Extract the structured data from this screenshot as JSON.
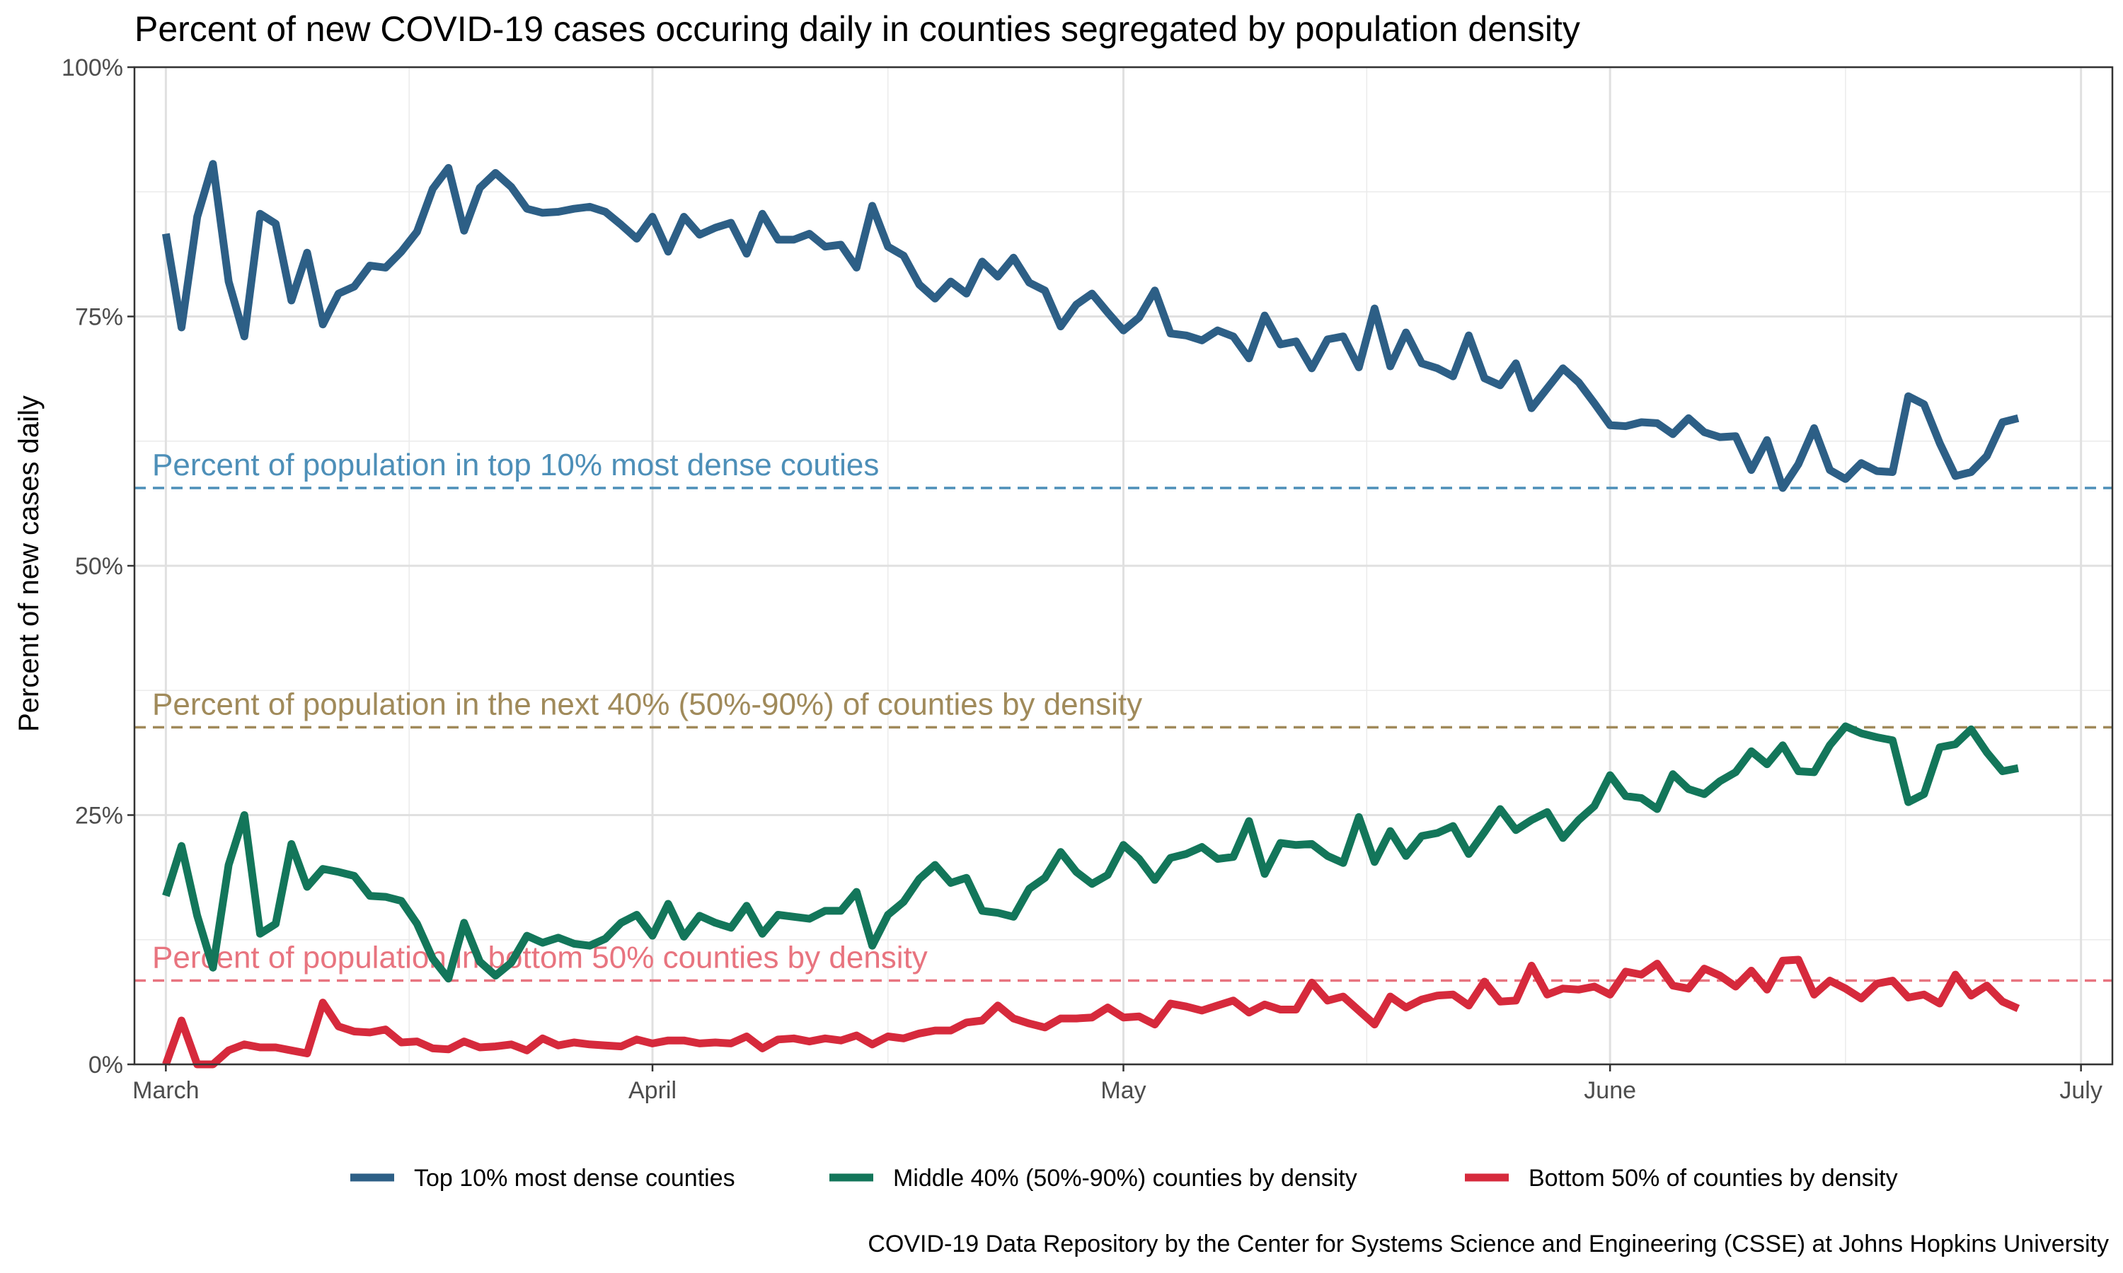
{
  "chart_data": {
    "type": "line",
    "title": "Percent of new COVID-19 cases occuring daily in counties segregated by population density",
    "xlabel": "",
    "ylabel": "Percent of new cases daily",
    "caption": "COVID-19 Data Repository by the Center for Systems Science and Engineering (CSSE) at Johns Hopkins University",
    "x_start": "2020-03-01",
    "xlim": [
      "2020-02-28",
      "2020-07-03"
    ],
    "ylim": [
      0,
      100
    ],
    "x_ticks": [
      {
        "label": "March",
        "date": "2020-03-01"
      },
      {
        "label": "April",
        "date": "2020-04-01"
      },
      {
        "label": "May",
        "date": "2020-05-01"
      },
      {
        "label": "June",
        "date": "2020-06-01"
      },
      {
        "label": "July",
        "date": "2020-07-01"
      }
    ],
    "y_ticks": [
      {
        "label": "0%",
        "value": 0
      },
      {
        "label": "25%",
        "value": 25
      },
      {
        "label": "50%",
        "value": 50
      },
      {
        "label": "75%",
        "value": 75
      },
      {
        "label": "100%",
        "value": 100
      }
    ],
    "grid": true,
    "legend_position": "bottom",
    "reference_lines": [
      {
        "label": "Percent of population in top 10% most dense couties",
        "value": 57.8,
        "color": "#4d8fb8"
      },
      {
        "label": "Percent of population in the next 40% (50%-90%) of counties by density",
        "value": 33.8,
        "color": "#a08a5a"
      },
      {
        "label": "Percent of population in bottom 50% counties by density",
        "value": 8.4,
        "color": "#e8747f"
      }
    ],
    "series": [
      {
        "name": "Top 10% most dense counties",
        "color": "#2d5f86",
        "values": [
          83.3,
          73.9,
          85.0,
          90.3,
          78.5,
          73.0,
          85.3,
          84.3,
          76.6,
          81.4,
          74.2,
          77.3,
          78.0,
          80.1,
          79.9,
          81.5,
          83.5,
          87.8,
          89.9,
          83.6,
          87.9,
          89.4,
          88.0,
          85.8,
          85.4,
          85.5,
          85.8,
          86.0,
          85.5,
          84.2,
          82.8,
          85.0,
          81.5,
          85.0,
          83.2,
          83.9,
          84.4,
          81.3,
          85.3,
          82.7,
          82.7,
          83.3,
          82.0,
          82.2,
          79.9,
          86.1,
          82.0,
          81.1,
          78.2,
          76.8,
          78.5,
          77.3,
          80.5,
          79.0,
          80.9,
          78.4,
          77.6,
          74.0,
          76.2,
          77.3,
          75.4,
          73.6,
          74.9,
          77.6,
          73.3,
          73.1,
          72.6,
          73.6,
          73.0,
          70.8,
          75.1,
          72.2,
          72.5,
          69.8,
          72.7,
          73.0,
          69.9,
          75.8,
          70.0,
          73.4,
          70.3,
          69.8,
          69.0,
          73.1,
          68.8,
          68.1,
          70.3,
          65.8,
          67.8,
          69.8,
          68.4,
          66.3,
          64.1,
          64.0,
          64.4,
          64.3,
          63.2,
          64.8,
          63.4,
          62.9,
          63.0,
          59.6,
          62.6,
          57.8,
          60.2,
          63.8,
          59.6,
          58.7,
          60.3,
          59.5,
          59.4,
          67.0,
          66.2,
          62.3,
          59.0,
          59.4,
          61.0,
          64.4,
          64.8
        ]
      },
      {
        "name": "Middle 40% (50%-90%) counties by density",
        "color": "#13765a",
        "values": [
          16.9,
          21.9,
          14.9,
          9.7,
          20.0,
          25.0,
          13.1,
          14.1,
          22.1,
          17.8,
          19.6,
          19.3,
          18.9,
          16.9,
          16.8,
          16.4,
          14.1,
          10.6,
          8.6,
          14.2,
          10.3,
          8.9,
          10.2,
          12.9,
          12.2,
          12.7,
          12.1,
          11.9,
          12.6,
          14.2,
          15.0,
          12.9,
          16.1,
          12.8,
          14.9,
          14.2,
          13.7,
          15.9,
          13.1,
          15.0,
          14.8,
          14.6,
          15.4,
          15.4,
          17.3,
          11.9,
          15.0,
          16.3,
          18.6,
          20.0,
          18.2,
          18.7,
          15.4,
          15.2,
          14.8,
          17.6,
          18.7,
          21.3,
          19.3,
          18.1,
          19.0,
          22.0,
          20.6,
          18.5,
          20.7,
          21.1,
          21.8,
          20.6,
          20.8,
          24.4,
          19.1,
          22.2,
          22.0,
          22.1,
          20.9,
          20.2,
          24.8,
          20.3,
          23.4,
          20.9,
          22.9,
          23.2,
          23.9,
          21.1,
          23.3,
          25.6,
          23.5,
          24.5,
          25.3,
          22.7,
          24.5,
          25.9,
          29.0,
          26.9,
          26.7,
          25.6,
          29.1,
          27.6,
          27.1,
          28.4,
          29.3,
          31.4,
          30.1,
          32.0,
          29.4,
          29.3,
          32.0,
          33.9,
          33.2,
          32.8,
          32.5,
          26.3,
          27.1,
          31.8,
          32.1,
          33.6,
          31.3,
          29.4,
          29.7
        ]
      },
      {
        "name": "Bottom 50% of counties by density",
        "color": "#d62a3c",
        "values": [
          0.0,
          4.4,
          0.0,
          0.0,
          1.4,
          2.0,
          1.7,
          1.7,
          1.4,
          1.1,
          6.2,
          3.8,
          3.3,
          3.2,
          3.5,
          2.2,
          2.3,
          1.6,
          1.5,
          2.3,
          1.7,
          1.8,
          2.0,
          1.4,
          2.6,
          1.9,
          2.2,
          2.0,
          1.9,
          1.8,
          2.5,
          2.1,
          2.4,
          2.4,
          2.1,
          2.2,
          2.1,
          2.8,
          1.6,
          2.5,
          2.6,
          2.3,
          2.6,
          2.4,
          2.9,
          2.0,
          2.8,
          2.6,
          3.1,
          3.4,
          3.4,
          4.2,
          4.4,
          5.9,
          4.6,
          4.1,
          3.7,
          4.6,
          4.6,
          4.7,
          5.7,
          4.7,
          4.8,
          4.0,
          6.1,
          5.8,
          5.4,
          5.9,
          6.4,
          5.2,
          6.0,
          5.5,
          5.5,
          8.2,
          6.4,
          6.8,
          5.4,
          4.0,
          6.8,
          5.7,
          6.5,
          6.9,
          7.0,
          5.9,
          8.3,
          6.3,
          6.4,
          9.9,
          7.0,
          7.6,
          7.5,
          7.8,
          7.0,
          9.3,
          9.0,
          10.1,
          7.9,
          7.6,
          9.6,
          8.9,
          7.8,
          9.4,
          7.5,
          10.4,
          10.5,
          7.0,
          8.4,
          7.6,
          6.6,
          8.1,
          8.4,
          6.7,
          7.0,
          6.1,
          9.0,
          6.9,
          7.9,
          6.3,
          5.6
        ]
      }
    ]
  }
}
